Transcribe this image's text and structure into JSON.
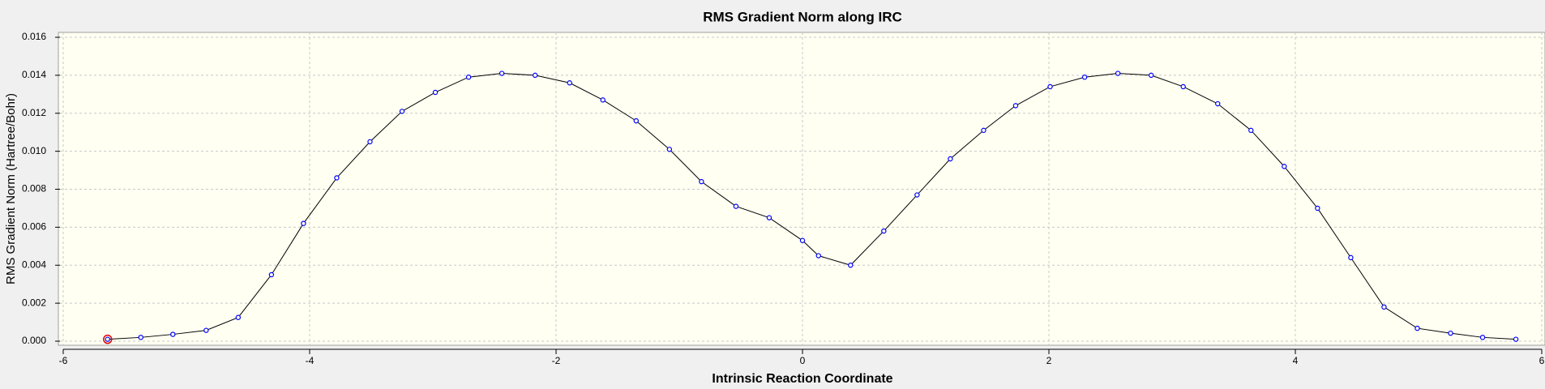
{
  "chart_data": {
    "type": "line",
    "title": "RMS Gradient Norm along IRC",
    "x_label": "Intrinsic Reaction Coordinate",
    "y_label": "RMS Gradient Norm (Hartree/Bohr)",
    "x": [
      -5.64,
      -5.37,
      -5.11,
      -4.84,
      -4.58,
      -4.31,
      -4.05,
      -3.78,
      -3.51,
      -3.25,
      -2.98,
      -2.71,
      -2.44,
      -2.17,
      -1.89,
      -1.62,
      -1.35,
      -1.08,
      -0.82,
      -0.54,
      -0.27,
      0.0,
      0.13,
      0.39,
      0.66,
      0.93,
      1.2,
      1.47,
      1.73,
      2.01,
      2.29,
      2.56,
      2.83,
      3.09,
      3.37,
      3.64,
      3.91,
      4.18,
      4.45,
      4.72,
      4.99,
      5.26,
      5.52,
      5.79
    ],
    "series": [
      {
        "color": "#0000ff",
        "line_color": "#000000",
        "values": [
          0.0001,
          0.0002,
          0.00036,
          0.00057,
          0.00125,
          0.0035,
          0.0062,
          0.0086,
          0.0105,
          0.0121,
          0.0131,
          0.0139,
          0.0141,
          0.014,
          0.0136,
          0.0127,
          0.0116,
          0.0101,
          0.0084,
          0.0071,
          0.0065,
          0.0053,
          0.0045,
          0.004,
          0.0058,
          0.0077,
          0.0096,
          0.0111,
          0.0124,
          0.0134,
          0.0139,
          0.0141,
          0.014,
          0.0134,
          0.0125,
          0.0111,
          0.0092,
          0.007,
          0.0044,
          0.0018,
          0.00068,
          0.00042,
          0.0002,
          0.0001
        ]
      }
    ],
    "xlim": [
      -6,
      6
    ],
    "xticks": [
      -6,
      -4,
      -2,
      0,
      2,
      4,
      6
    ],
    "ylim": [
      0,
      0.016
    ],
    "yticks": [
      {
        "value": 0,
        "label": "0.000"
      },
      {
        "value": 0.002,
        "label": "0.002"
      },
      {
        "value": 0.004,
        "label": "0.004"
      },
      {
        "value": 0.006,
        "label": "0.006"
      },
      {
        "value": 0.008,
        "label": "0.008"
      },
      {
        "value": 0.01,
        "label": "0.010"
      },
      {
        "value": 0.012,
        "label": "0.012"
      },
      {
        "value": 0.014,
        "label": "0.014"
      },
      {
        "value": 0.016,
        "label": "0.016"
      }
    ],
    "grid": true
  }
}
